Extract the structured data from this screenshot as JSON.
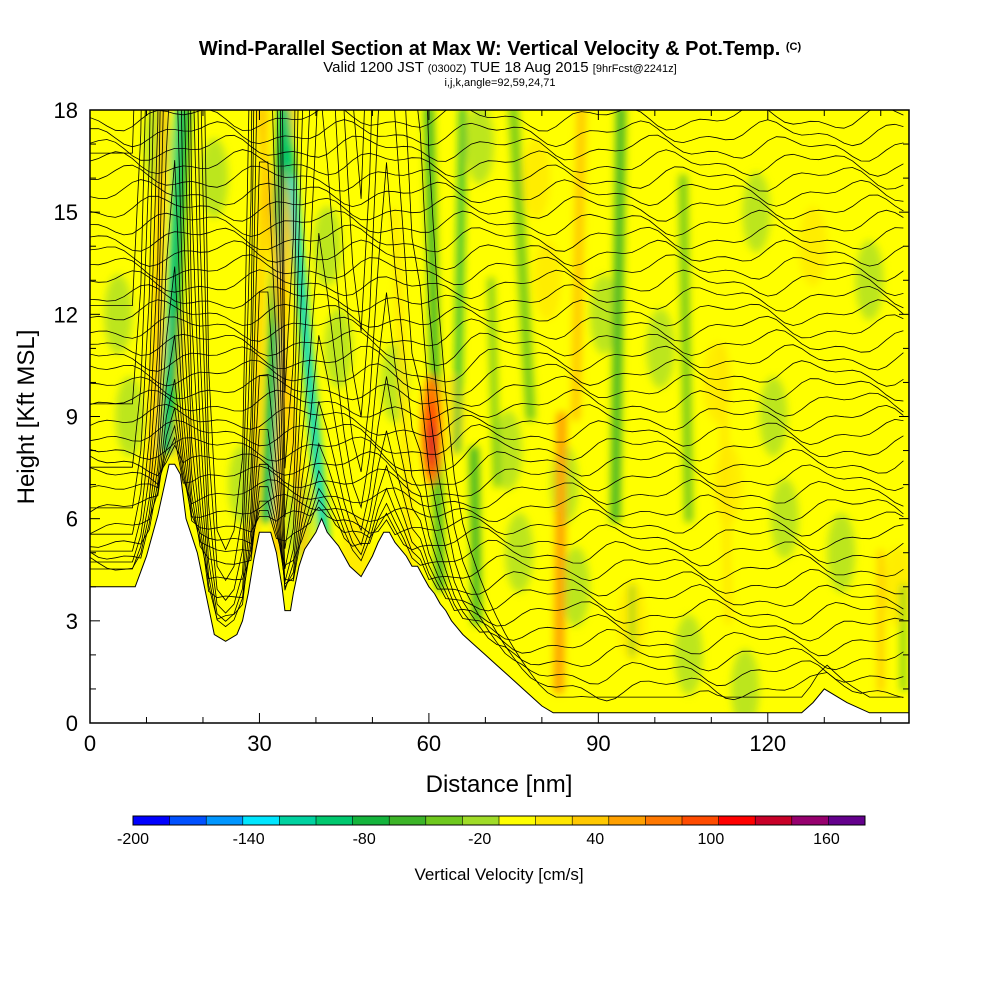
{
  "title": {
    "line1": "Wind-Parallel Section at Max W: Vertical Velocity & Pot.Temp.",
    "copyright": "(C)",
    "line2_a": "Valid 1200 JST",
    "line2_b": "(0300Z)",
    "line2_c": "TUE 18 Aug 2015",
    "line2_d": "[9hrFcst@2241z]",
    "line3": "i,j,k,angle=92,59,24,71"
  },
  "chart_data": {
    "type": "heatmap",
    "title": "Wind-Parallel Section at Max W: Vertical Velocity & Pot.Temp.",
    "xlabel": "Distance [nm]",
    "ylabel": "Height [Kft MSL]",
    "xlim": [
      0,
      145
    ],
    "ylim": [
      0,
      18
    ],
    "x_ticks": [
      "0",
      "30",
      "60",
      "90",
      "120"
    ],
    "y_ticks": [
      "0",
      "3",
      "6",
      "9",
      "12",
      "15",
      "18"
    ],
    "colorbar": {
      "label": "Vertical Velocity [cm/s]",
      "tick_labels": [
        "-200",
        "-140",
        "-80",
        "-20",
        "40",
        "100",
        "160"
      ],
      "tick_values": [
        -200,
        -140,
        -80,
        -20,
        40,
        100,
        160
      ],
      "range": [
        -200,
        180
      ],
      "step": 20,
      "colors": [
        "#0000ff",
        "#0050ff",
        "#0096ff",
        "#00e6ff",
        "#00d2a0",
        "#00c86e",
        "#14b43c",
        "#3cb428",
        "#6ec81e",
        "#a0dc28",
        "#ffff00",
        "#ffe600",
        "#ffc800",
        "#ffa000",
        "#ff7800",
        "#ff4b00",
        "#ff0000",
        "#c80028",
        "#96006e",
        "#64008c"
      ]
    },
    "terrain": {
      "x": [
        0,
        4,
        8,
        10,
        12,
        14,
        15,
        16,
        17,
        18,
        19,
        20,
        21,
        22,
        24,
        26,
        27,
        28,
        29,
        30,
        32,
        33,
        34,
        34.5,
        35.5,
        36,
        37,
        38,
        40,
        41,
        42,
        44,
        45,
        46,
        48,
        49,
        50,
        51,
        52,
        53,
        54,
        56,
        57,
        58,
        59,
        60,
        61,
        62,
        63,
        64,
        65,
        66,
        68,
        70,
        72,
        74,
        76,
        78,
        80,
        82,
        84,
        85,
        88,
        92,
        100,
        110,
        120,
        126,
        128,
        130,
        134,
        138,
        142,
        145
      ],
      "height_kft": [
        4.0,
        4.0,
        4.0,
        4.9,
        6.1,
        7.6,
        7.6,
        7.3,
        6.0,
        5.5,
        5.0,
        4.2,
        3.4,
        2.6,
        2.4,
        2.6,
        3.0,
        3.8,
        4.8,
        5.6,
        5.6,
        5.0,
        4.0,
        3.3,
        3.3,
        3.8,
        4.6,
        5.1,
        5.6,
        6.0,
        5.6,
        5.2,
        4.9,
        4.6,
        4.3,
        4.6,
        4.9,
        5.3,
        5.6,
        5.6,
        5.3,
        4.9,
        4.6,
        4.6,
        4.3,
        4.0,
        3.8,
        3.5,
        3.3,
        3.0,
        2.8,
        2.6,
        2.3,
        2.0,
        1.7,
        1.4,
        1.1,
        0.8,
        0.5,
        0.3,
        0.3,
        0.3,
        0.3,
        0.3,
        0.3,
        0.3,
        0.3,
        0.3,
        0.6,
        1.0,
        0.6,
        0.3,
        0.3,
        0.3
      ]
    },
    "vertical_velocity_features": [
      {
        "name": "max updraft core",
        "x": 60.5,
        "height_kft": 8.3,
        "w_cm_s": 140
      },
      {
        "name": "updraft band",
        "x": 83,
        "height_kft": 4.3,
        "w_cm_s": 60
      },
      {
        "name": "updraft band",
        "x": 35.5,
        "height_kft": 6.3,
        "w_cm_s": 50
      },
      {
        "name": "downdraft band",
        "x": 41.5,
        "height_kft": 7.0,
        "w_cm_s": -90
      },
      {
        "name": "downdraft band",
        "x": 32.5,
        "height_kft": 7.0,
        "w_cm_s": -80
      },
      {
        "name": "downdraft band",
        "x": 16,
        "height_kft": 10.5,
        "w_cm_s": -80
      },
      {
        "name": "downdraft band",
        "x": 64,
        "height_kft": 12.5,
        "w_cm_s": -70
      },
      {
        "name": "downdraft band",
        "x": 68.5,
        "height_kft": 5.0,
        "w_cm_s": -60
      },
      {
        "name": "downdraft band",
        "x": 94,
        "height_kft": 14.0,
        "w_cm_s": -50
      },
      {
        "name": "updraft band",
        "x": 87,
        "height_kft": 15.0,
        "w_cm_s": 40
      }
    ]
  }
}
